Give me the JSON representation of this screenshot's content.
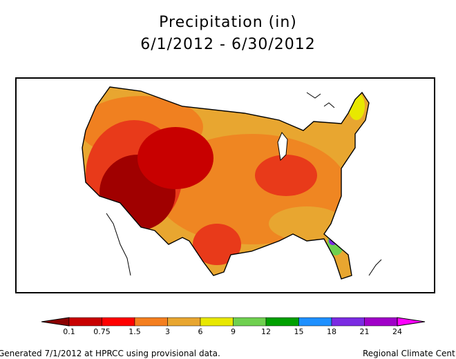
{
  "title": "Precipitation (in)",
  "date_range": "6/1/2012 - 6/30/2012",
  "legend": {
    "ticks": [
      "0.1",
      "0.75",
      "1.5",
      "3",
      "6",
      "9",
      "12",
      "15",
      "18",
      "21",
      "24"
    ],
    "colors": [
      "#8b0000",
      "#c80000",
      "#ff0000",
      "#f47f1f",
      "#e8a630",
      "#e8e800",
      "#6fd04f",
      "#00a000",
      "#1e90ff",
      "#7b2be2",
      "#a000c8",
      "#ff00ff"
    ]
  },
  "footer": {
    "left": "Generated 7/1/2012 at HPRCC using provisional data.",
    "right": "Regional Climate Cent"
  },
  "map": {
    "region": "Contiguous United States",
    "variable": "Precipitation (in)",
    "colors": {
      "background": "#ffffff",
      "outline": "#000000",
      "driest": "#a00000",
      "dry": "#e83a1a",
      "moderate": "#f08020",
      "base": "#e8a630",
      "wet": "#e8e800",
      "wetter": "#6fd04f",
      "wettest": "#7b2be2"
    }
  }
}
